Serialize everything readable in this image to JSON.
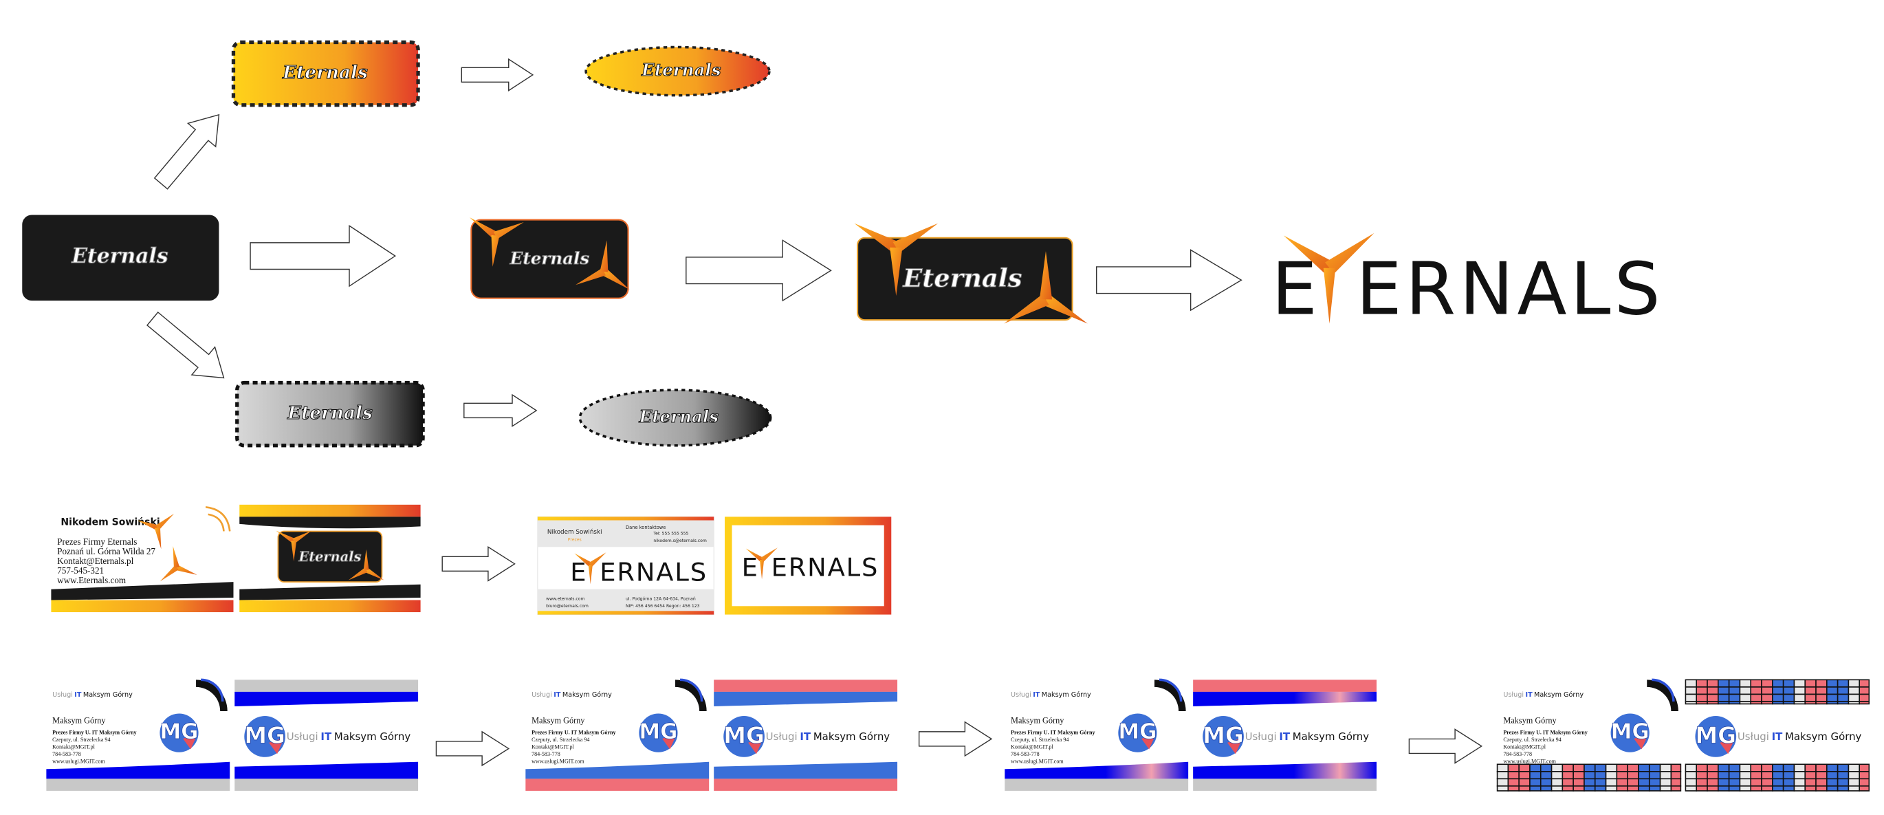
{
  "logo_text": "Eternals",
  "final_logo": {
    "first": "E",
    "rest": "ERNALS"
  },
  "card_front": {
    "name": "Nikodem Sowiński",
    "lines": [
      "Prezes Firmy Eternals",
      "Poznań ul. Górna Wilda 27",
      "Kontakt@Eternals.pl",
      "757-545-321",
      "www.Eternals.com"
    ]
  },
  "card_redesign": {
    "name": "Nikodem Sowiński",
    "role": "Prezes",
    "contact_title": "Dane kontaktowe",
    "phone": "Tel: 555 555 555",
    "email": "nikodem.s@eternals.com",
    "website": "www.eternals.com",
    "social": "biuro@eternals.com",
    "address": "ul. Podgórna 12A 64-634, Poznań",
    "registry": "NIP: 456 456 6454  Regon: 456 123"
  },
  "mg_card": {
    "brand_prefix": "Usługi",
    "brand_it": "IT",
    "brand_name": "Maksym Górny",
    "monogram": "MG",
    "name": "Maksym Górny",
    "lines": [
      "Prezes Firmy U. IT Maksym Górny",
      "Czeputy, ul. Strzelecka 94",
      "Kontakt@MGIT.pl",
      "784-583-778",
      "www.uslugi.MGIT.com"
    ]
  }
}
